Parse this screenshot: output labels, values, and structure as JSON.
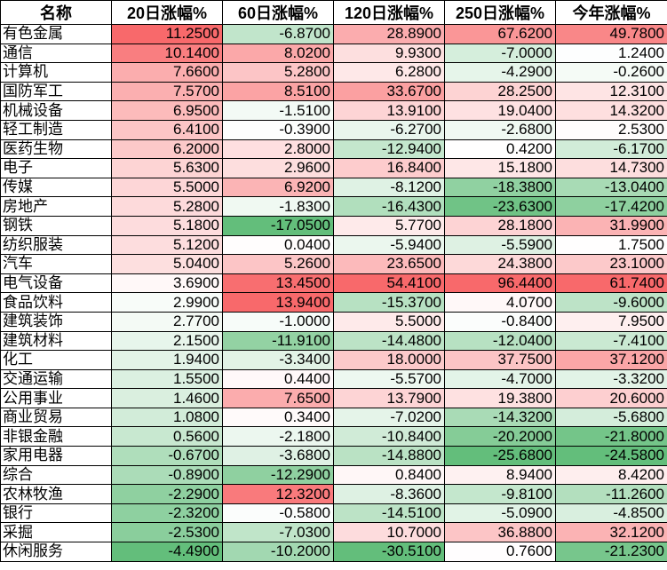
{
  "chart_data": {
    "type": "heatmap",
    "color_scale": {
      "min": "#63BE7B",
      "mid": "#FFFFFF",
      "max": "#F8696B",
      "midpoint": "median per column"
    },
    "columns": [
      "名称",
      "20日涨幅%",
      "60日涨幅%",
      "120日涨幅%",
      "250日涨幅%",
      "今年涨幅%"
    ],
    "rows": [
      {
        "name": "有色金属",
        "values": [
          11.25,
          -6.87,
          28.89,
          67.62,
          49.78
        ]
      },
      {
        "name": "通信",
        "values": [
          10.14,
          8.02,
          9.93,
          -7.0,
          1.24
        ]
      },
      {
        "name": "计算机",
        "values": [
          7.66,
          5.28,
          6.28,
          -4.29,
          -0.26
        ]
      },
      {
        "name": "国防军工",
        "values": [
          7.57,
          8.51,
          33.67,
          28.25,
          12.31
        ]
      },
      {
        "name": "机械设备",
        "values": [
          6.95,
          -1.51,
          13.91,
          19.04,
          14.32
        ]
      },
      {
        "name": "轻工制造",
        "values": [
          6.41,
          -0.39,
          -6.27,
          -2.68,
          2.53
        ]
      },
      {
        "name": "医药生物",
        "values": [
          6.2,
          2.8,
          -12.94,
          0.42,
          -6.17
        ]
      },
      {
        "name": "电子",
        "values": [
          5.63,
          2.96,
          16.84,
          15.18,
          14.73
        ]
      },
      {
        "name": "传媒",
        "values": [
          5.5,
          6.92,
          -8.12,
          -18.38,
          -13.04
        ]
      },
      {
        "name": "房地产",
        "values": [
          5.28,
          -1.83,
          -16.43,
          -23.63,
          -17.42
        ]
      },
      {
        "name": "钢铁",
        "values": [
          5.18,
          -17.05,
          5.77,
          28.18,
          31.99
        ]
      },
      {
        "name": "纺织服装",
        "values": [
          5.12,
          0.04,
          -5.94,
          -5.59,
          1.75
        ]
      },
      {
        "name": "汽车",
        "values": [
          5.04,
          5.26,
          23.65,
          24.38,
          23.1
        ]
      },
      {
        "name": "电气设备",
        "values": [
          3.69,
          13.45,
          54.41,
          96.44,
          61.74
        ]
      },
      {
        "name": "食品饮料",
        "values": [
          2.99,
          13.94,
          -15.37,
          4.07,
          -9.6
        ]
      },
      {
        "name": "建筑装饰",
        "values": [
          2.77,
          -1.0,
          5.5,
          -0.84,
          7.95
        ]
      },
      {
        "name": "建筑材料",
        "values": [
          2.15,
          -11.91,
          -14.48,
          -12.04,
          -7.41
        ]
      },
      {
        "name": "化工",
        "values": [
          1.94,
          -3.34,
          18.0,
          37.75,
          37.12
        ]
      },
      {
        "name": "交通运输",
        "values": [
          1.55,
          0.44,
          -5.57,
          -4.7,
          -3.32
        ]
      },
      {
        "name": "公用事业",
        "values": [
          1.46,
          7.65,
          13.79,
          19.38,
          20.6
        ]
      },
      {
        "name": "商业贸易",
        "values": [
          1.08,
          0.34,
          -7.02,
          -14.32,
          -5.68
        ]
      },
      {
        "name": "非银金融",
        "values": [
          0.56,
          -2.18,
          -10.84,
          -20.2,
          -21.8
        ]
      },
      {
        "name": "家用电器",
        "values": [
          -0.67,
          -3.68,
          -14.88,
          -25.68,
          -24.58
        ]
      },
      {
        "name": "综合",
        "values": [
          -0.89,
          -12.29,
          0.84,
          8.94,
          8.42
        ]
      },
      {
        "name": "农林牧渔",
        "values": [
          -2.29,
          12.32,
          -8.36,
          -9.81,
          -11.26
        ]
      },
      {
        "name": "银行",
        "values": [
          -2.32,
          -0.58,
          -14.51,
          -5.09,
          -4.85
        ]
      },
      {
        "name": "采掘",
        "values": [
          -2.53,
          -7.03,
          10.7,
          36.88,
          32.12
        ]
      },
      {
        "name": "休闲服务",
        "values": [
          -4.49,
          -10.2,
          -30.51,
          0.76,
          -21.23
        ]
      }
    ]
  }
}
